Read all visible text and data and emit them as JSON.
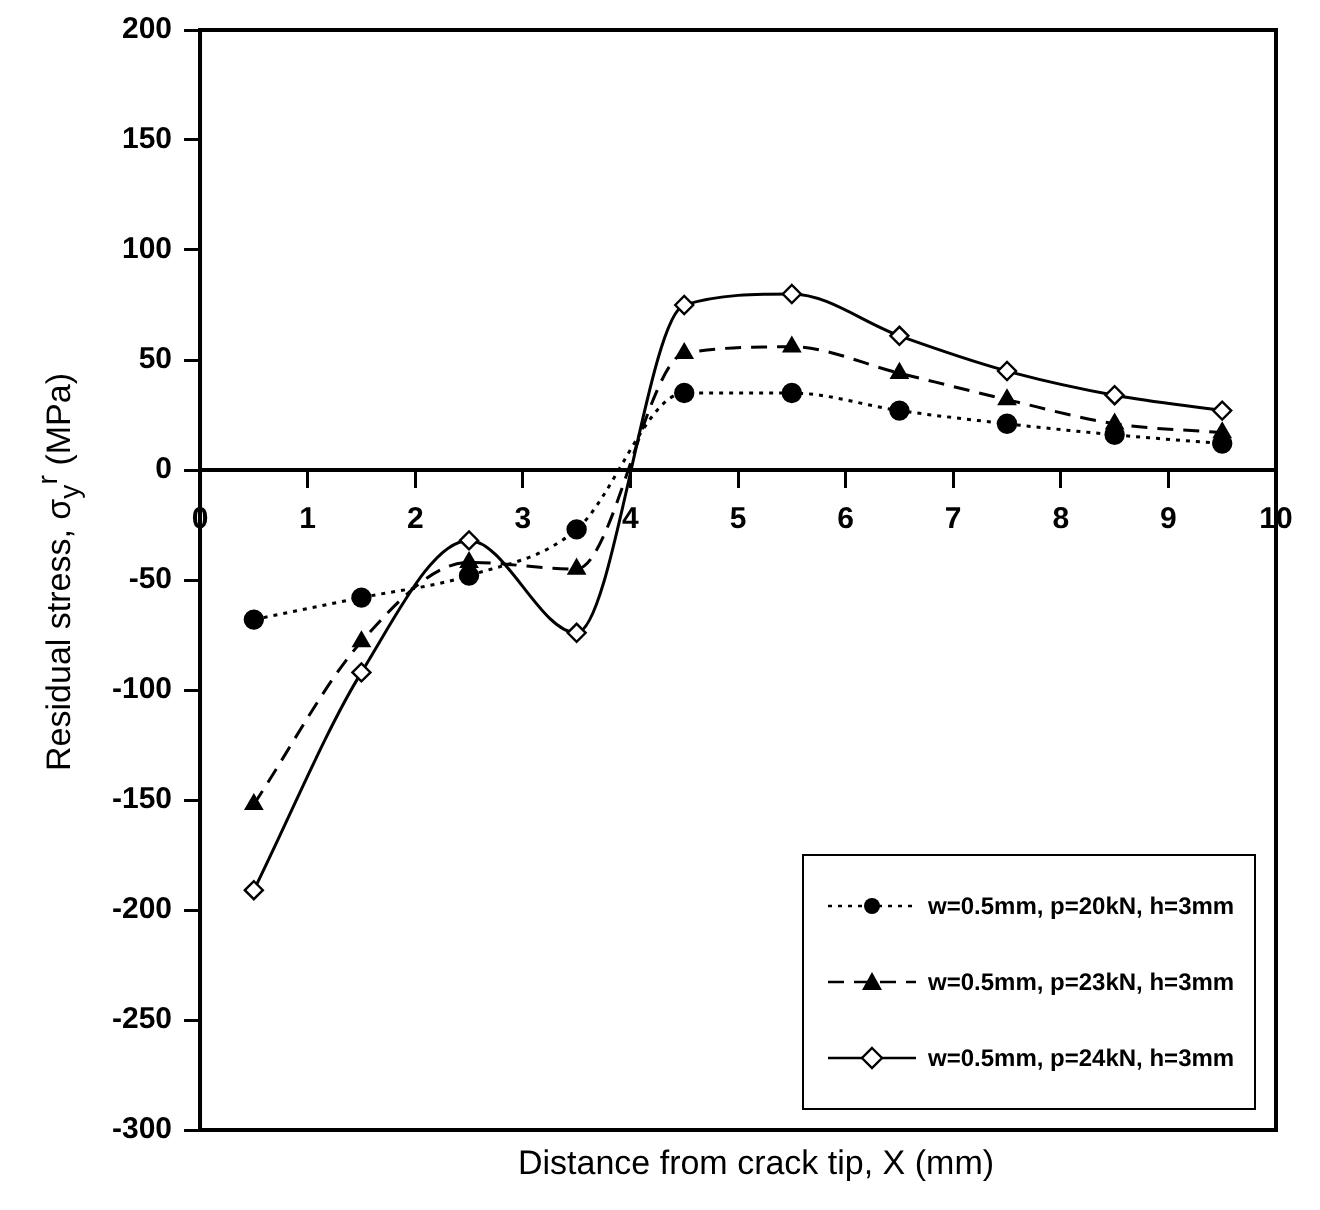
{
  "chart_data": {
    "type": "line",
    "xlabel": "Distance from crack tip, X (mm)",
    "ylabel": "Residual stress, σ$_{y}$$^{r}$ (MPa)",
    "x": [
      0.5,
      1.5,
      2.5,
      3.5,
      4.5,
      5.5,
      6.5,
      7.5,
      8.5,
      9.5
    ],
    "xlim": [
      0,
      10
    ],
    "xticks": [
      0,
      1,
      2,
      3,
      4,
      5,
      6,
      7,
      8,
      9,
      10
    ],
    "ylim": [
      -300,
      200
    ],
    "yticks": [
      -300,
      -250,
      -200,
      -150,
      -100,
      -50,
      0,
      50,
      100,
      150,
      200
    ],
    "grid": false,
    "legend": "bottom right",
    "series": [
      {
        "name": "w=0.5mm, p=20kN, h=3mm",
        "color": "#000000",
        "marker": "circle",
        "line_style": "dotted",
        "values": [
          -68,
          -58,
          -48,
          -27,
          35,
          35,
          27,
          21,
          16,
          12
        ]
      },
      {
        "name": "w=0.5mm, p=23kN, h=3mm",
        "color": "#000000",
        "marker": "triangle",
        "line_style": "dashed",
        "values": [
          -152,
          -78,
          -42,
          -45,
          53,
          56,
          44,
          32,
          21,
          17
        ]
      },
      {
        "name": "w=0.5mm, p=24kN, h=3mm",
        "color": "#000000",
        "marker": "diamond",
        "line_style": "solid",
        "values": [
          -191,
          -92,
          -32,
          -74,
          75,
          80,
          61,
          45,
          34,
          27
        ]
      }
    ]
  }
}
